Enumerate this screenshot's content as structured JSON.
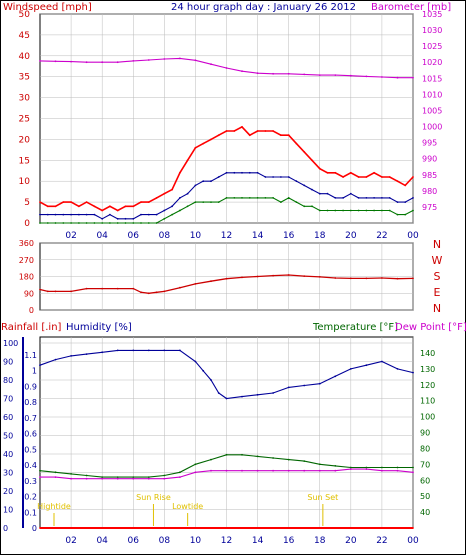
{
  "colors": {
    "wind": "#ff0000",
    "gust": "#ff0000",
    "avg": "#000099",
    "low": "#007700",
    "baro": "#cc00cc",
    "dir": "#cc0000",
    "humidity": "#000099",
    "temp": "#006600",
    "dew": "#cc00cc",
    "rain": "#ff0000",
    "event": "#e0c000",
    "frame": "#000000",
    "grid": "#bbbbbb"
  },
  "chart_data": [
    {
      "type": "line",
      "title": "24 hour graph day : January 26 2012",
      "ylabel_left": "Windspeed [mph]",
      "ylabel_right": "Barometer [mb]",
      "xlim": [
        0,
        24
      ],
      "x_ticks": [
        "02",
        "04",
        "06",
        "08",
        "10",
        "12",
        "14",
        "16",
        "18",
        "20",
        "22",
        "00"
      ],
      "ylim_left": [
        0,
        50
      ],
      "yticks_left": [
        "0",
        "5",
        "10",
        "15",
        "20",
        "25",
        "30",
        "35",
        "40",
        "45",
        "50"
      ],
      "ylim_right": [
        970,
        1035
      ],
      "yticks_right": [
        "975",
        "980",
        "985",
        "990",
        "995",
        "1000",
        "1005",
        "1010",
        "1015",
        "1020",
        "1025",
        "1030",
        "1035"
      ],
      "series": [
        {
          "name": "",
          "axis": "left",
          "color_key": "gust",
          "x": [
            0,
            0.5,
            1,
            1.5,
            2,
            2.5,
            3,
            3.5,
            4,
            4.5,
            5,
            5.5,
            6,
            6.5,
            7,
            7.5,
            8,
            8.5,
            9,
            9.5,
            10,
            10.5,
            11,
            11.5,
            12,
            12.5,
            13,
            13.5,
            14,
            14.5,
            15,
            15.5,
            16,
            16.5,
            17,
            17.5,
            18,
            18.5,
            19,
            19.5,
            20,
            20.5,
            21,
            21.5,
            22,
            22.5,
            23,
            23.5,
            24
          ],
          "values": [
            5,
            4,
            4,
            5,
            5,
            4,
            5,
            4,
            3,
            4,
            3,
            4,
            4,
            5,
            5,
            6,
            7,
            8,
            12,
            15,
            18,
            19,
            20,
            21,
            22,
            22,
            23,
            21,
            22,
            22,
            22,
            21,
            21,
            19,
            17,
            15,
            13,
            12,
            12,
            11,
            12,
            11,
            11,
            12,
            11,
            11,
            10,
            9,
            11
          ]
        },
        {
          "name": "",
          "axis": "left",
          "color_key": "avg",
          "x": [
            0,
            0.5,
            1,
            1.5,
            2,
            2.5,
            3,
            3.5,
            4,
            4.5,
            5,
            5.5,
            6,
            6.5,
            7,
            7.5,
            8,
            8.5,
            9,
            9.5,
            10,
            10.5,
            11,
            11.5,
            12,
            12.5,
            13,
            13.5,
            14,
            14.5,
            15,
            15.5,
            16,
            16.5,
            17,
            17.5,
            18,
            18.5,
            19,
            19.5,
            20,
            20.5,
            21,
            21.5,
            22,
            22.5,
            23,
            23.5,
            24
          ],
          "values": [
            2,
            2,
            2,
            2,
            2,
            2,
            2,
            2,
            1,
            2,
            1,
            1,
            1,
            2,
            2,
            2,
            3,
            4,
            6,
            7,
            9,
            10,
            10,
            11,
            12,
            12,
            12,
            12,
            12,
            11,
            11,
            11,
            11,
            10,
            9,
            8,
            7,
            7,
            6,
            6,
            7,
            6,
            6,
            6,
            6,
            6,
            5,
            5,
            6
          ]
        },
        {
          "name": "",
          "axis": "left",
          "color_key": "low",
          "x": [
            0,
            0.5,
            1,
            1.5,
            2,
            2.5,
            3,
            3.5,
            4,
            4.5,
            5,
            5.5,
            6,
            6.5,
            7,
            7.5,
            8,
            8.5,
            9,
            9.5,
            10,
            10.5,
            11,
            11.5,
            12,
            12.5,
            13,
            13.5,
            14,
            14.5,
            15,
            15.5,
            16,
            16.5,
            17,
            17.5,
            18,
            18.5,
            19,
            19.5,
            20,
            20.5,
            21,
            21.5,
            22,
            22.5,
            23,
            23.5,
            24
          ],
          "values": [
            0,
            0,
            0,
            0,
            0,
            0,
            0,
            0,
            0,
            0,
            0,
            0,
            0,
            0,
            0,
            0,
            1,
            2,
            3,
            4,
            5,
            5,
            5,
            5,
            6,
            6,
            6,
            6,
            6,
            6,
            6,
            5,
            6,
            5,
            4,
            4,
            3,
            3,
            3,
            3,
            3,
            3,
            3,
            3,
            3,
            3,
            2,
            2,
            3
          ]
        },
        {
          "name": "",
          "axis": "right",
          "color_key": "baro",
          "x": [
            0,
            1,
            2,
            3,
            4,
            5,
            6,
            7,
            8,
            9,
            10,
            11,
            12,
            13,
            14,
            15,
            16,
            17,
            18,
            19,
            20,
            21,
            22,
            23,
            24
          ],
          "values": [
            1020.4,
            1020.3,
            1020.2,
            1020.0,
            1020.0,
            1020.0,
            1020.4,
            1020.7,
            1021.0,
            1021.2,
            1020.6,
            1019.4,
            1018.2,
            1017.2,
            1016.6,
            1016.4,
            1016.4,
            1016.2,
            1016.0,
            1016.0,
            1015.8,
            1015.6,
            1015.4,
            1015.2,
            1015.2
          ]
        }
      ]
    },
    {
      "type": "line",
      "ylabel_right": "N W S E N",
      "right_labels": [
        "N",
        "W",
        "S",
        "E",
        "N"
      ],
      "xlim": [
        0,
        24
      ],
      "ylim": [
        0,
        360
      ],
      "yticks_left": [
        "0",
        "90",
        "180",
        "270",
        "360"
      ],
      "series": [
        {
          "name": "",
          "color_key": "dir",
          "x": [
            0,
            0.5,
            1,
            2,
            3,
            4,
            5,
            6,
            6.5,
            7,
            7.5,
            8,
            9,
            10,
            11,
            12,
            13,
            14,
            15,
            16,
            17,
            18,
            19,
            20,
            21,
            22,
            23,
            24
          ],
          "values": [
            110,
            100,
            100,
            100,
            115,
            115,
            115,
            115,
            95,
            90,
            95,
            100,
            120,
            140,
            155,
            168,
            175,
            180,
            185,
            188,
            182,
            178,
            172,
            170,
            170,
            172,
            168,
            170
          ]
        }
      ]
    },
    {
      "type": "line",
      "ylabel_left": "Rainfall [.in]",
      "ylabel_left2": "Humidity [%]",
      "ylabel_right": "Temperature [°F]",
      "ylabel_right2": "Dew Point [°F]",
      "xlim": [
        0,
        24
      ],
      "x_ticks": [
        "02",
        "04",
        "06",
        "08",
        "10",
        "12",
        "14",
        "16",
        "18",
        "20",
        "22",
        "00"
      ],
      "ylim_rain": [
        0,
        1.1
      ],
      "yticks_rain": [
        "0",
        "0.1",
        "0.2",
        "0.3",
        "0.4",
        "0.5",
        "0.6",
        "0.7",
        "0.8",
        "0.9",
        "1",
        "1.1"
      ],
      "ylim_humidity": [
        0,
        100
      ],
      "yticks_humidity": [
        "0",
        "10",
        "20",
        "30",
        "40",
        "50",
        "60",
        "70",
        "80",
        "90",
        "100"
      ],
      "ylim_temp": [
        30,
        150
      ],
      "yticks_temp": [
        "40",
        "50",
        "60",
        "70",
        "80",
        "90",
        "100",
        "110",
        "120",
        "130",
        "140"
      ],
      "series": [
        {
          "name": "",
          "axis": "humidity",
          "color_key": "humidity",
          "x": [
            0,
            1,
            2,
            3,
            4,
            5,
            6,
            7,
            8,
            9,
            10,
            10.5,
            11,
            11.5,
            12,
            13,
            14,
            15,
            16,
            17,
            18,
            19,
            20,
            21,
            22,
            23,
            24
          ],
          "values": [
            88,
            91,
            93,
            94,
            95,
            96,
            96,
            96,
            96,
            96,
            90,
            85,
            80,
            73,
            70,
            71,
            72,
            73,
            76,
            77,
            78,
            82,
            86,
            88,
            90,
            86,
            84
          ]
        },
        {
          "name": "",
          "axis": "temp",
          "color_key": "temp",
          "x": [
            0,
            1,
            2,
            3,
            4,
            5,
            6,
            7,
            8,
            9,
            10,
            11,
            12,
            13,
            14,
            15,
            16,
            17,
            18,
            19,
            20,
            21,
            22,
            23,
            24
          ],
          "values": [
            66,
            65,
            64,
            63,
            62,
            62,
            62,
            62,
            63,
            65,
            70,
            73,
            76,
            76,
            75,
            74,
            73,
            72,
            70,
            69,
            68,
            68,
            68,
            68,
            68
          ]
        },
        {
          "name": "",
          "axis": "temp",
          "color_key": "dew",
          "x": [
            0,
            1,
            2,
            3,
            4,
            5,
            6,
            7,
            8,
            9,
            10,
            11,
            12,
            13,
            14,
            15,
            16,
            17,
            18,
            19,
            20,
            21,
            22,
            23,
            24
          ],
          "values": [
            62,
            62,
            61,
            61,
            61,
            61,
            61,
            61,
            61,
            62,
            65,
            66,
            66,
            66,
            66,
            66,
            66,
            66,
            66,
            66,
            67,
            67,
            66,
            66,
            65
          ]
        },
        {
          "name": "",
          "axis": "rain",
          "color_key": "rain",
          "x": [
            0,
            24
          ],
          "values": [
            0,
            0
          ]
        }
      ],
      "events": [
        {
          "label": "Hightide",
          "x": 0.9,
          "row": "low"
        },
        {
          "label": "Sun Rise",
          "x": 7.3,
          "row": "high"
        },
        {
          "label": "Lowtide",
          "x": 9.5,
          "row": "low"
        },
        {
          "label": "Sun Set",
          "x": 18.2,
          "row": "high"
        }
      ]
    }
  ]
}
